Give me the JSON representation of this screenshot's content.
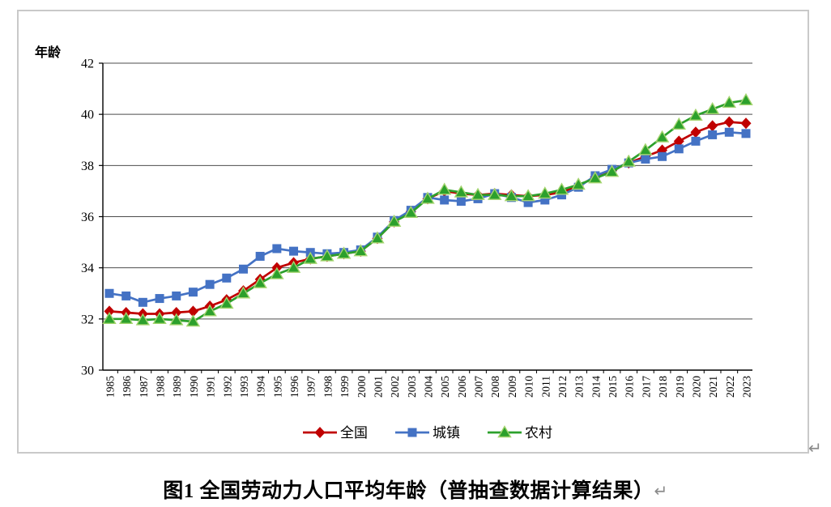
{
  "page": {
    "return_mark": "↵"
  },
  "caption": {
    "text": "图1 全国劳动力人口平均年龄（普抽查数据计算结果）",
    "return_mark": "↵"
  },
  "chart_data": {
    "type": "line",
    "title": "",
    "xlabel": "",
    "ylabel": "年龄",
    "ylim": [
      30,
      42
    ],
    "ytick_step": 2,
    "grid": true,
    "legend_position": "bottom",
    "axis_color": "#000000",
    "gridline_color": "#4d4d4d",
    "x": [
      1985,
      1986,
      1987,
      1988,
      1989,
      1990,
      1991,
      1992,
      1993,
      1994,
      1995,
      1996,
      1997,
      1998,
      1999,
      2000,
      2001,
      2002,
      2003,
      2004,
      2005,
      2006,
      2007,
      2008,
      2009,
      2010,
      2011,
      2012,
      2013,
      2014,
      2015,
      2016,
      2017,
      2018,
      2019,
      2020,
      2021,
      2022,
      2023
    ],
    "series": [
      {
        "key": "national",
        "name": "全国",
        "color": "#C00000",
        "marker": "diamond",
        "values": [
          32.3,
          32.25,
          32.2,
          32.2,
          32.25,
          32.3,
          32.5,
          32.75,
          33.1,
          33.55,
          34.0,
          34.2,
          34.35,
          34.45,
          34.55,
          34.65,
          35.15,
          35.8,
          36.2,
          36.7,
          37.0,
          36.9,
          36.85,
          36.9,
          36.85,
          36.8,
          36.85,
          36.95,
          37.2,
          37.55,
          37.8,
          38.1,
          38.35,
          38.6,
          38.95,
          39.3,
          39.55,
          39.7,
          39.65
        ]
      },
      {
        "key": "urban",
        "name": "城镇",
        "color": "#4472C4",
        "marker": "square",
        "values": [
          33.0,
          32.9,
          32.65,
          32.8,
          32.9,
          33.05,
          33.35,
          33.6,
          33.95,
          34.45,
          34.75,
          34.65,
          34.6,
          34.55,
          34.6,
          34.7,
          35.2,
          35.85,
          36.25,
          36.75,
          36.65,
          36.6,
          36.7,
          36.9,
          36.75,
          36.55,
          36.65,
          36.85,
          37.15,
          37.6,
          37.85,
          38.1,
          38.25,
          38.35,
          38.65,
          38.95,
          39.2,
          39.3,
          39.25
        ]
      },
      {
        "key": "rural",
        "name": "农村",
        "color": "#2CA02C",
        "marker": "triangle",
        "marker_stroke": "#A3D46E",
        "values": [
          32.0,
          32.0,
          31.95,
          32.0,
          31.95,
          31.9,
          32.3,
          32.6,
          33.0,
          33.4,
          33.75,
          34.0,
          34.35,
          34.45,
          34.55,
          34.65,
          35.15,
          35.8,
          36.15,
          36.7,
          37.05,
          36.95,
          36.85,
          36.85,
          36.8,
          36.8,
          36.9,
          37.05,
          37.25,
          37.5,
          37.75,
          38.15,
          38.6,
          39.1,
          39.6,
          39.95,
          40.2,
          40.45,
          40.55
        ]
      }
    ]
  }
}
